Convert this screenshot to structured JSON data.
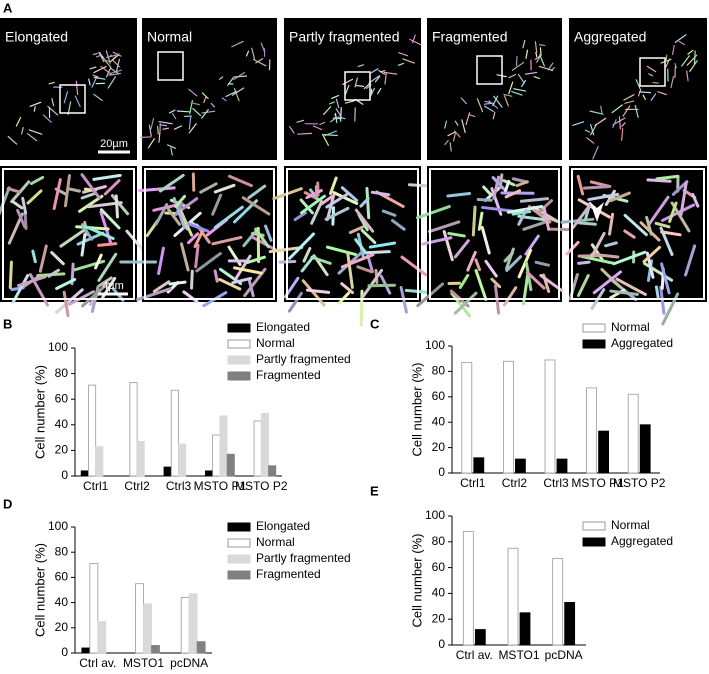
{
  "panel_a": {
    "label": "A",
    "images": [
      "Elongated",
      "Normal",
      "Partly fragmented",
      "Fragmented",
      "Aggregated"
    ],
    "scale_bar_top": "20µm",
    "scale_bar_bottom": "4µm"
  },
  "chart_data": [
    {
      "type": "bar",
      "panel": "B",
      "ylabel": "Cell number (%)",
      "categories": [
        "Ctrl1",
        "Ctrl2",
        "Ctrl3",
        "MSTO P1",
        "MSTO P2"
      ],
      "series": [
        {
          "name": "Elongated",
          "color": "#000000",
          "values": [
            4,
            0,
            7,
            4,
            0
          ]
        },
        {
          "name": "Normal",
          "color": "#ffffff",
          "values": [
            71,
            73,
            67,
            32,
            43
          ]
        },
        {
          "name": "Partly fragmented",
          "color": "#d9d9d9",
          "values": [
            23,
            27,
            25,
            47,
            49
          ]
        },
        {
          "name": "Fragmented",
          "color": "#808080",
          "values": [
            0,
            0,
            0,
            17,
            8
          ]
        }
      ],
      "ylim": [
        0,
        100
      ],
      "yticks": [
        0,
        20,
        40,
        60,
        80,
        100
      ],
      "grid": false,
      "legend": "upper right"
    },
    {
      "type": "bar",
      "panel": "C",
      "ylabel": "Cell number (%)",
      "categories": [
        "Ctrl1",
        "Ctrl2",
        "Ctrl3",
        "MSTO P1",
        "MSTO P2"
      ],
      "series": [
        {
          "name": "Normal",
          "color": "#ffffff",
          "values": [
            87,
            88,
            89,
            67,
            62
          ]
        },
        {
          "name": "Aggregated",
          "color": "#000000",
          "values": [
            12,
            11,
            11,
            33,
            38
          ]
        }
      ],
      "ylim": [
        0,
        100
      ],
      "yticks": [
        0,
        20,
        40,
        60,
        80,
        100
      ],
      "grid": false,
      "legend": "upper right"
    },
    {
      "type": "bar",
      "panel": "D",
      "ylabel": "Cell number (%)",
      "categories": [
        "Ctrl av.",
        "MSTO1",
        "pcDNA"
      ],
      "series": [
        {
          "name": "Elongated",
          "color": "#000000",
          "values": [
            4,
            0,
            0
          ]
        },
        {
          "name": "Normal",
          "color": "#ffffff",
          "values": [
            71,
            55,
            44
          ]
        },
        {
          "name": "Partly fragmented",
          "color": "#d9d9d9",
          "values": [
            25,
            39,
            47
          ]
        },
        {
          "name": "Fragmented",
          "color": "#808080",
          "values": [
            0,
            6,
            9
          ]
        }
      ],
      "ylim": [
        0,
        100
      ],
      "yticks": [
        0,
        20,
        40,
        60,
        80,
        100
      ],
      "grid": false,
      "legend": "upper right"
    },
    {
      "type": "bar",
      "panel": "E",
      "ylabel": "Cell number (%)",
      "categories": [
        "Ctrl av.",
        "MSTO1",
        "pcDNA"
      ],
      "series": [
        {
          "name": "Normal",
          "color": "#ffffff",
          "values": [
            88,
            75,
            67
          ]
        },
        {
          "name": "Aggregated",
          "color": "#000000",
          "values": [
            12,
            25,
            33
          ]
        }
      ],
      "ylim": [
        0,
        100
      ],
      "yticks": [
        0,
        20,
        40,
        60,
        80,
        100
      ],
      "grid": false,
      "legend": "upper right"
    }
  ]
}
